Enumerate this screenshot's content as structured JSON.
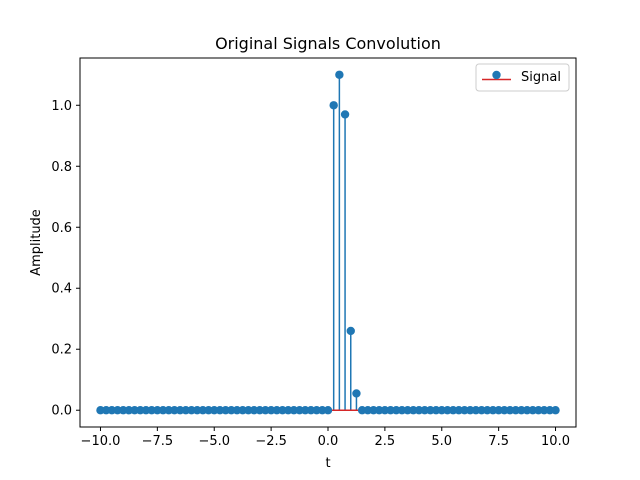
{
  "chart_data": {
    "type": "stem",
    "title": "Original Signals Convolution",
    "xlabel": "t",
    "ylabel": "Amplitude",
    "xlim": [
      -10.9,
      10.9
    ],
    "ylim": [
      -0.055,
      1.155
    ],
    "xticks": [
      -10.0,
      -7.5,
      -5.0,
      -2.5,
      0.0,
      2.5,
      5.0,
      7.5,
      10.0
    ],
    "xtick_labels": [
      "−10.0",
      "−7.5",
      "−5.0",
      "−2.5",
      "0.0",
      "2.5",
      "5.0",
      "7.5",
      "10.0"
    ],
    "yticks": [
      0.0,
      0.2,
      0.4,
      0.6,
      0.8,
      1.0
    ],
    "ytick_labels": [
      "0.0",
      "0.2",
      "0.4",
      "0.6",
      "0.8",
      "1.0"
    ],
    "grid": false,
    "legend": {
      "position": "upper-right",
      "entries": [
        "Signal"
      ]
    },
    "colors": {
      "marker": "#1f77b4",
      "stem": "#1f77b4",
      "baseline": "#d62728"
    },
    "series": [
      {
        "name": "Signal",
        "x": [
          -10.0,
          -9.75,
          -9.5,
          -9.25,
          -9.0,
          -8.75,
          -8.5,
          -8.25,
          -8.0,
          -7.75,
          -7.5,
          -7.25,
          -7.0,
          -6.75,
          -6.5,
          -6.25,
          -6.0,
          -5.75,
          -5.5,
          -5.25,
          -5.0,
          -4.75,
          -4.5,
          -4.25,
          -4.0,
          -3.75,
          -3.5,
          -3.25,
          -3.0,
          -2.75,
          -2.5,
          -2.25,
          -2.0,
          -1.75,
          -1.5,
          -1.25,
          -1.0,
          -0.75,
          -0.5,
          -0.25,
          0.0,
          0.25,
          0.5,
          0.75,
          1.0,
          1.25,
          1.5,
          1.75,
          2.0,
          2.25,
          2.5,
          2.75,
          3.0,
          3.25,
          3.5,
          3.75,
          4.0,
          4.25,
          4.5,
          4.75,
          5.0,
          5.25,
          5.5,
          5.75,
          6.0,
          6.25,
          6.5,
          6.75,
          7.0,
          7.25,
          7.5,
          7.75,
          8.0,
          8.25,
          8.5,
          8.75,
          9.0,
          9.25,
          9.5,
          9.75,
          10.0
        ],
        "y": [
          0,
          0,
          0,
          0,
          0,
          0,
          0,
          0,
          0,
          0,
          0,
          0,
          0,
          0,
          0,
          0,
          0,
          0,
          0,
          0,
          0,
          0,
          0,
          0,
          0,
          0,
          0,
          0,
          0,
          0,
          0,
          0,
          0,
          0,
          0,
          0,
          0,
          0,
          0,
          0,
          0,
          1.0,
          1.1,
          0.97,
          0.26,
          0.055,
          0,
          0,
          0,
          0,
          0,
          0,
          0,
          0,
          0,
          0,
          0,
          0,
          0,
          0,
          0,
          0,
          0,
          0,
          0,
          0,
          0,
          0,
          0,
          0,
          0,
          0,
          0,
          0,
          0,
          0,
          0,
          0,
          0,
          0,
          0
        ]
      }
    ]
  }
}
